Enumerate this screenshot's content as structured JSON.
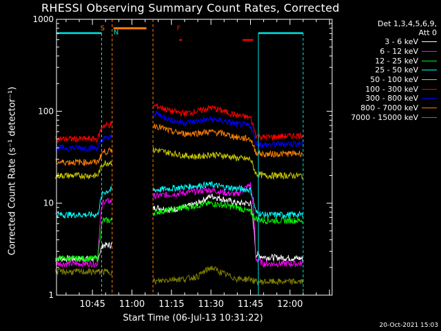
{
  "colors": {
    "background": "#000000",
    "axes": "#ffffff",
    "attenuator": "#00e5e5",
    "saa": "#ff8000",
    "night": "#ff8000",
    "flare": "#ff0000"
  },
  "chart_data": {
    "type": "line",
    "title": "RHESSI Observing Summary Count Rates, Corrected",
    "xlabel": "Start Time (06-Jul-13 10:31:22)",
    "ylabel": "Corrected Count Rate (s⁻¹ detector⁻¹)",
    "y_scale": "log",
    "ylim": [
      1,
      1000
    ],
    "xlim": [
      "10:31:22",
      "12:16:00"
    ],
    "x_ticks": [
      "10:45",
      "11:00",
      "11:15",
      "11:30",
      "11:45",
      "12:00"
    ],
    "y_ticks": [
      "1",
      "10",
      "100",
      "1000"
    ],
    "legend_header": [
      "Det 1,3,4,5,6,9,",
      "Att 0"
    ],
    "legend_position": "right",
    "data_gap": [
      "10:52:30",
      "11:08:00"
    ],
    "series": [
      {
        "name": "3 - 6 keV",
        "color": "#ffffff",
        "x": [
          "10:31",
          "10:47",
          "10:49",
          "10:52",
          "11:09",
          "11:15",
          "11:20",
          "11:25",
          "11:30",
          "11:35",
          "11:40",
          "11:45",
          "11:47",
          "11:50",
          "12:05"
        ],
        "y": [
          2.5,
          2.5,
          3.5,
          3.5,
          9,
          8.5,
          9,
          10,
          12,
          11,
          10,
          10,
          2.8,
          2.6,
          2.5
        ]
      },
      {
        "name": "6 - 12 keV",
        "color": "#ff00ff",
        "x": [
          "10:31",
          "10:47",
          "10:49",
          "10:52",
          "11:09",
          "11:15",
          "11:20",
          "11:25",
          "11:30",
          "11:35",
          "11:40",
          "11:45",
          "11:47",
          "11:50",
          "12:05"
        ],
        "y": [
          2.2,
          2.2,
          10.5,
          10.5,
          12,
          12.5,
          13,
          13.5,
          14,
          13,
          12.5,
          16,
          2.5,
          2.2,
          2.2
        ]
      },
      {
        "name": "12 - 25 keV",
        "color": "#00ff00",
        "x": [
          "10:31",
          "10:47",
          "10:49",
          "10:52",
          "11:09",
          "11:15",
          "11:20",
          "11:25",
          "11:30",
          "11:35",
          "11:40",
          "11:45",
          "11:47",
          "11:50",
          "12:05"
        ],
        "y": [
          2.5,
          2.5,
          6.5,
          6.5,
          8,
          8.5,
          9,
          9.5,
          10,
          9.5,
          9,
          8,
          6.8,
          6.5,
          6.5
        ]
      },
      {
        "name": "25 - 50 keV",
        "color": "#00ffff",
        "x": [
          "10:31",
          "10:47",
          "10:49",
          "10:52",
          "11:09",
          "11:15",
          "11:20",
          "11:25",
          "11:30",
          "11:35",
          "11:40",
          "11:45",
          "11:47",
          "11:50",
          "12:05"
        ],
        "y": [
          7.5,
          7.5,
          13,
          14,
          14,
          14.5,
          15,
          15.5,
          16,
          15,
          14.5,
          14,
          8,
          7.5,
          7.5
        ]
      },
      {
        "name": "50 - 100 keV",
        "color": "#cccc00",
        "x": [
          "10:31",
          "10:47",
          "10:49",
          "10:52",
          "11:09",
          "11:15",
          "11:20",
          "11:25",
          "11:30",
          "11:35",
          "11:40",
          "11:45",
          "11:47",
          "11:50",
          "12:05"
        ],
        "y": [
          20,
          20,
          27,
          28,
          38,
          35,
          33,
          32,
          34,
          33,
          31,
          30,
          21,
          20,
          20
        ]
      },
      {
        "name": "100 - 300 keV",
        "color": "#ff0000",
        "x": [
          "10:31",
          "10:47",
          "10:49",
          "10:52",
          "11:09",
          "11:15",
          "11:20",
          "11:25",
          "11:30",
          "11:35",
          "11:40",
          "11:45",
          "11:47",
          "11:50",
          "12:05"
        ],
        "y": [
          50,
          50,
          70,
          72,
          115,
          100,
          95,
          100,
          110,
          100,
          90,
          85,
          55,
          52,
          55
        ]
      },
      {
        "name": "300 - 800 keV",
        "color": "#0000ff",
        "x": [
          "10:31",
          "10:47",
          "10:49",
          "10:52",
          "11:09",
          "11:15",
          "11:20",
          "11:25",
          "11:30",
          "11:35",
          "11:40",
          "11:45",
          "11:47",
          "11:50",
          "12:05"
        ],
        "y": [
          40,
          40,
          50,
          52,
          95,
          80,
          75,
          78,
          82,
          78,
          72,
          70,
          45,
          43,
          45
        ]
      },
      {
        "name": "800 - 7000 keV",
        "color": "#ff8000",
        "x": [
          "10:31",
          "10:47",
          "10:49",
          "10:52",
          "11:09",
          "11:15",
          "11:20",
          "11:25",
          "11:30",
          "11:35",
          "11:40",
          "11:45",
          "11:47",
          "11:50",
          "12:05"
        ],
        "y": [
          28,
          28,
          36,
          37,
          70,
          60,
          57,
          58,
          60,
          57,
          52,
          50,
          36,
          34,
          35
        ]
      },
      {
        "name": "7000 - 15000 keV",
        "color": "#808000",
        "x": [
          "10:31",
          "10:47",
          "10:49",
          "10:52",
          "11:09",
          "11:15",
          "11:20",
          "11:25",
          "11:30",
          "11:35",
          "11:40",
          "11:45",
          "11:47",
          "11:50",
          "12:05"
        ],
        "y": [
          1.8,
          1.8,
          1.8,
          1.8,
          1.4,
          1.5,
          1.5,
          1.6,
          2.0,
          1.7,
          1.5,
          1.5,
          1.4,
          1.4,
          1.4
        ]
      }
    ],
    "annotations": [
      {
        "label": "S",
        "x": "10:48",
        "color": "#ff8000"
      },
      {
        "label": "N",
        "x": "10:53",
        "color": "#00e5e5"
      },
      {
        "label": "F",
        "x": "11:17",
        "color": "#ff0000"
      }
    ],
    "state_bars": [
      {
        "kind": "attenuator",
        "from": "10:31:22",
        "to": "10:48:30",
        "color": "#00e5e5"
      },
      {
        "kind": "night",
        "from": "10:53",
        "to": "11:05:30",
        "color": "#ff8000"
      },
      {
        "kind": "flare",
        "from": "11:18",
        "to": "11:19",
        "color": "#ff0000"
      },
      {
        "kind": "flare",
        "from": "11:42",
        "to": "11:46",
        "color": "#ff0000"
      },
      {
        "kind": "attenuator",
        "from": "11:48",
        "to": "12:05",
        "color": "#00e5e5"
      }
    ]
  },
  "footer": {
    "timestamp": "20-Oct-2021 15:03"
  }
}
